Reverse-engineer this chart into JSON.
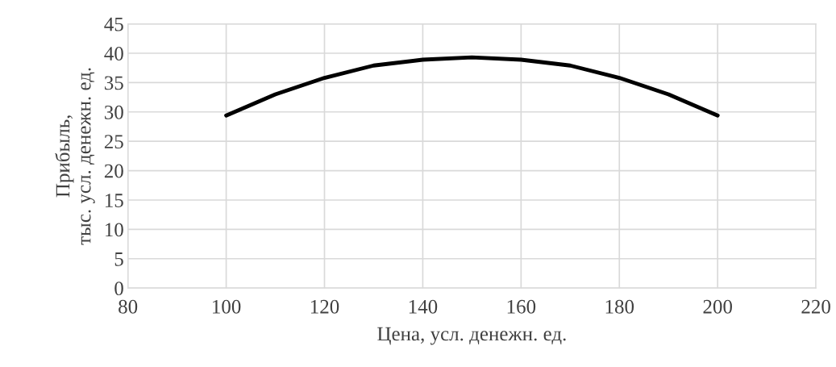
{
  "chart_data": {
    "type": "line",
    "xlabel": "Цена, усл. денежн. ед.",
    "ylabel": "Прибыль,\nтыс. усл. денежн. ед.",
    "x": [
      100,
      110,
      120,
      130,
      140,
      150,
      160,
      170,
      180,
      190,
      200
    ],
    "series": [
      {
        "color": "#000000",
        "values": [
          29.4,
          33.0,
          35.8,
          37.9,
          38.9,
          39.3,
          38.9,
          37.9,
          35.8,
          33.0,
          29.4
        ]
      }
    ],
    "xlim": [
      80,
      220
    ],
    "xticks": [
      80,
      100,
      120,
      140,
      160,
      180,
      200,
      220
    ],
    "ylim": [
      0,
      45
    ],
    "yticks": [
      0,
      5,
      10,
      15,
      20,
      25,
      30,
      35,
      40,
      45
    ],
    "grid": true,
    "marker": "none",
    "line_style": "solid",
    "legend": false
  }
}
